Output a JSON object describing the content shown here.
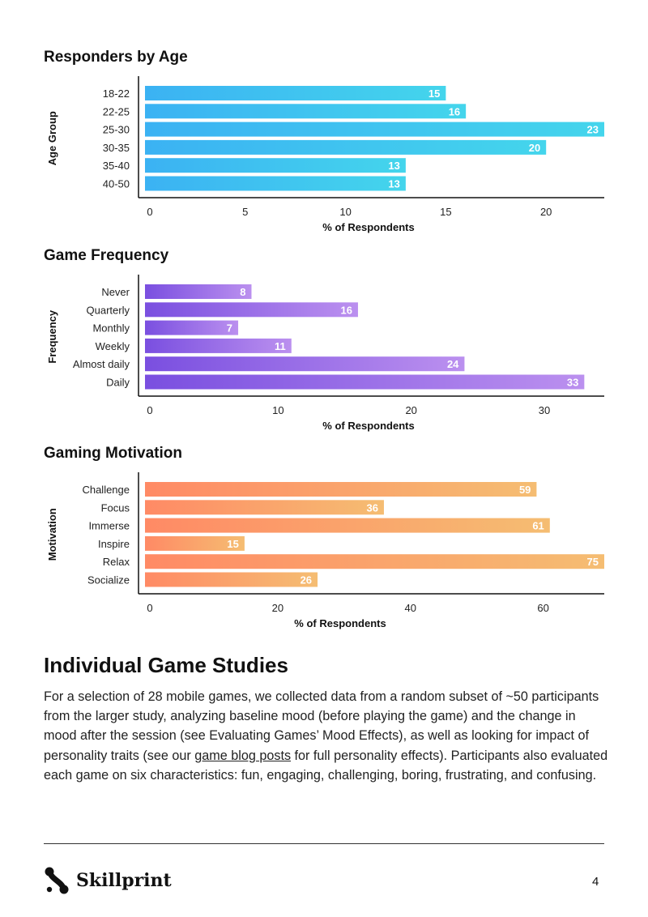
{
  "chart_data": [
    {
      "type": "bar",
      "orientation": "horizontal",
      "title": "Responders by Age",
      "xlabel": "% of Respondents",
      "ylabel": "Age Group",
      "categories": [
        "18-22",
        "22-25",
        "25-30",
        "30-35",
        "35-40",
        "40-50"
      ],
      "values": [
        15,
        16,
        23,
        20,
        13,
        13
      ],
      "data_labels": [
        "15",
        "16",
        "23",
        "20",
        "13",
        "13"
      ],
      "xticks": [
        "0",
        "5",
        "10",
        "15",
        "20"
      ],
      "xlim": [
        -0.3,
        22.9
      ],
      "gradient": [
        "#3bb2f3",
        "#44d5ec"
      ],
      "grid": false
    },
    {
      "type": "bar",
      "orientation": "horizontal",
      "title": "Game Frequency",
      "xlabel": "% of Respondents",
      "ylabel": "Frequency",
      "categories": [
        "Never",
        "Quarterly",
        "Monthly",
        "Weekly",
        "Almost daily",
        "Daily"
      ],
      "values": [
        8,
        16,
        7,
        11,
        24,
        33
      ],
      "data_labels": [
        "8",
        "16",
        "7",
        "11",
        "24",
        "33"
      ],
      "xticks": [
        "0",
        "10",
        "20",
        "30"
      ],
      "xlim": [
        -0.6,
        34.5
      ],
      "gradient": [
        "#7a4fe0",
        "#bb90ef"
      ],
      "grid": false
    },
    {
      "type": "bar",
      "orientation": "horizontal",
      "title": "Gaming Motivation",
      "xlabel": "% of Respondents",
      "ylabel": "Motivation",
      "categories": [
        "Challenge",
        "Focus",
        "Immerse",
        "Inspire",
        "Relax",
        "Socialize"
      ],
      "values": [
        59,
        36,
        61,
        15,
        75,
        26
      ],
      "data_labels": [
        "59",
        "36",
        "61",
        "15",
        "75",
        "26"
      ],
      "xticks": [
        "0",
        "20",
        "40",
        "60"
      ],
      "xlim": [
        -1.1,
        69.2
      ],
      "gradient": [
        "#ff8a65",
        "#f5bd72"
      ],
      "grid": false
    }
  ],
  "article": {
    "heading": "Individual Game Studies",
    "paragraph_before_link": "For a selection of 28 mobile games, we collected data from a random subset of ~50 participants from the larger study, analyzing baseline mood (before playing the game) and the change in mood after the session (see Evaluating Games’ Mood Effects), as well as looking for impact of personality traits (see our ",
    "link_text": "game blog posts",
    "paragraph_after_link": " for full personality effects). Participants also evaluated each game on six characteristics: fun, engaging, challenging, boring, frustrating, and confusing."
  },
  "footer": {
    "brand": "Skillprint",
    "logo_icon": "skillprint-logo-icon",
    "page_number": "4"
  }
}
